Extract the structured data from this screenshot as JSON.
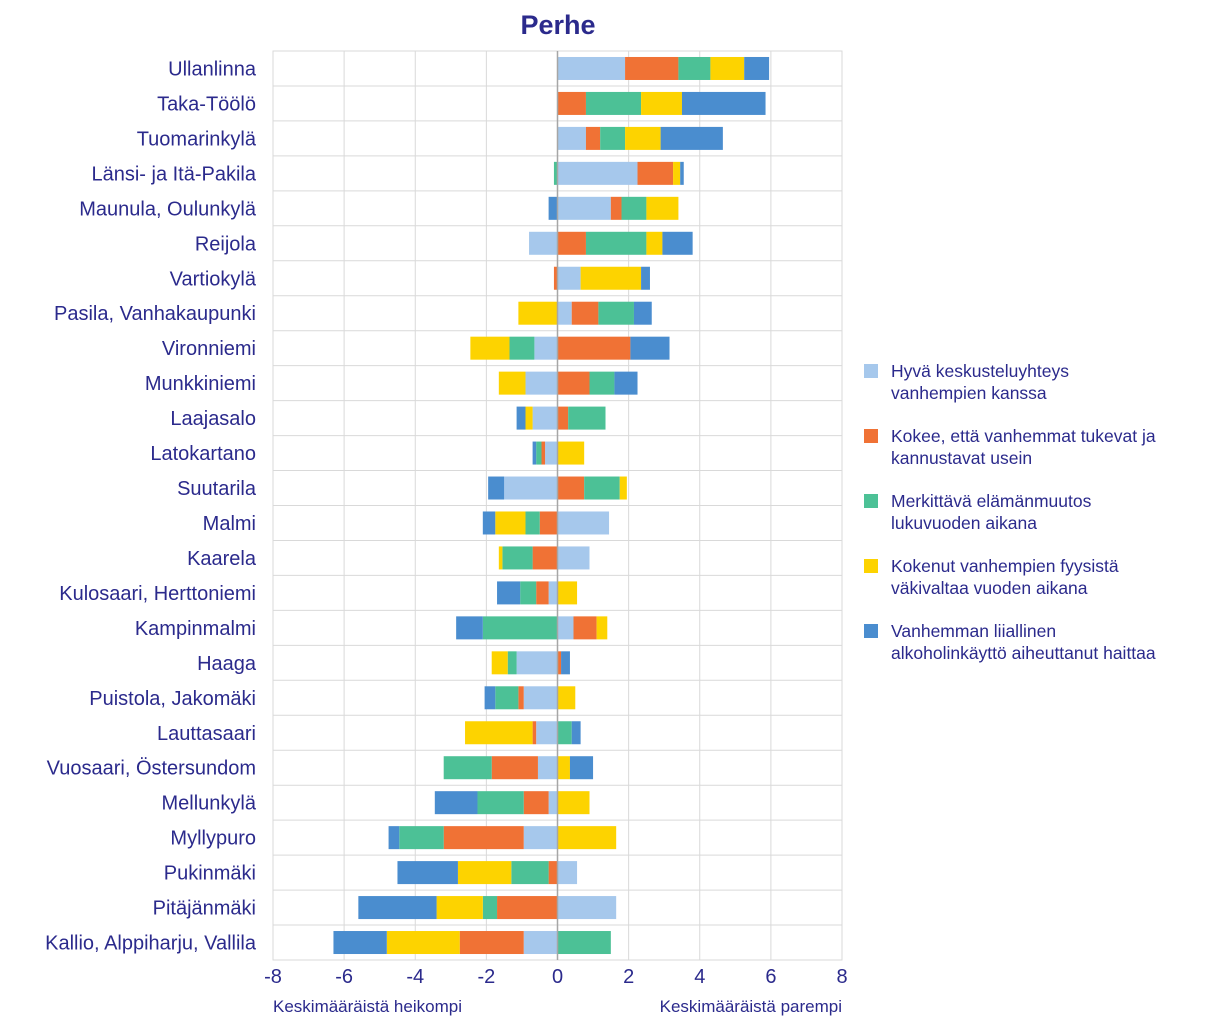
{
  "chart_data": {
    "type": "bar",
    "orientation": "horizontal",
    "stacked": true,
    "title": "Perhe",
    "xlim": [
      -8,
      8
    ],
    "xticks": [
      "-8",
      "-6",
      "-4",
      "-2",
      "0",
      "2",
      "4",
      "6",
      "8"
    ],
    "xlabel_left": "Keskimääräistä heikompi",
    "xlabel_right": "Keskimääräistä parempi",
    "legend_position": "right",
    "grid": true,
    "categories": [
      "Ullanlinna",
      "Taka-Töölö",
      "Tuomarinkylä",
      "Länsi- ja Itä-Pakila",
      "Maunula, Oulunkylä",
      "Reijola",
      "Vartiokylä",
      "Pasila, Vanhakaupunki",
      "Vironniemi",
      "Munkkiniemi",
      "Laajasalo",
      "Latokartano",
      "Suutarila",
      "Malmi",
      "Kaarela",
      "Kulosaari, Herttoniemi",
      "Kampinmalmi",
      "Haaga",
      "Puistola, Jakomäki",
      "Lauttasaari",
      "Vuosaari, Östersundom",
      "Mellunkylä",
      "Myllypuro",
      "Pukinmäki",
      "Pitäjänmäki",
      "Kallio, Alppiharju, Vallila"
    ],
    "series": [
      {
        "name": "Hyvä keskusteluyhteys\nvanhempien kanssa",
        "color": "#a6c8ec",
        "values": [
          1.9,
          0,
          0.8,
          2.25,
          1.5,
          -0.8,
          0.65,
          0.4,
          -0.65,
          -0.9,
          -0.7,
          -0.35,
          -1.5,
          1.45,
          0.9,
          -0.25,
          0.45,
          -1.15,
          -0.95,
          -0.6,
          -0.55,
          -0.25,
          -0.95,
          0.55,
          1.65,
          -0.95
        ]
      },
      {
        "name": "Kokee, että vanhemmat tukevat ja\nkannustavat usein",
        "color": "#f07235",
        "values": [
          1.5,
          0.8,
          0.4,
          1.0,
          0.3,
          0.8,
          -0.1,
          0.75,
          2.05,
          0.9,
          0.3,
          -0.1,
          0.75,
          -0.5,
          -0.7,
          -0.35,
          0.65,
          0.1,
          -0.15,
          -0.1,
          -1.3,
          -0.7,
          -2.25,
          -0.25,
          -1.7,
          -1.8
        ]
      },
      {
        "name": "Merkittävä elämänmuutos\nlukuvuoden aikana",
        "color": "#4cc196",
        "values": [
          0.9,
          1.55,
          0.7,
          -0.1,
          0.7,
          1.7,
          0,
          1.0,
          -0.7,
          0.7,
          1.05,
          -0.15,
          1.0,
          -0.4,
          -0.85,
          -0.45,
          -2.1,
          -0.25,
          -0.65,
          0.4,
          -1.35,
          -1.3,
          -1.25,
          -1.05,
          -0.4,
          1.5
        ]
      },
      {
        "name": "Kokenut vanhempien fyysistä\nväkivaltaa vuoden aikana",
        "color": "#fdd300",
        "values": [
          0.95,
          1.15,
          1.0,
          0.2,
          0.9,
          0.45,
          1.7,
          -1.1,
          -1.1,
          -0.75,
          -0.2,
          0.75,
          0.2,
          -0.85,
          -0.1,
          0.55,
          0.3,
          -0.45,
          0.5,
          -1.9,
          0.35,
          0.9,
          1.65,
          -1.5,
          -1.3,
          -2.05
        ]
      },
      {
        "name": "Vanhemman liiallinen\nalkoholinkäyttö aiheuttanut haittaa",
        "color": "#4a8dcf",
        "values": [
          0.7,
          2.35,
          1.75,
          0.1,
          -0.25,
          0.85,
          0.25,
          0.5,
          1.1,
          0.65,
          -0.25,
          -0.1,
          -0.45,
          -0.35,
          0,
          -0.65,
          -0.75,
          0.25,
          -0.3,
          0.25,
          0.65,
          -1.2,
          -0.3,
          -1.7,
          -2.2,
          -1.5
        ]
      }
    ]
  }
}
